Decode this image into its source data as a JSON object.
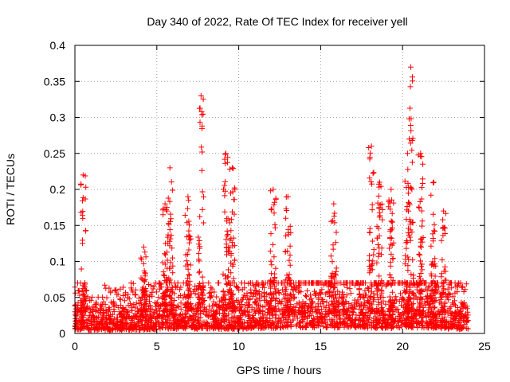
{
  "chart_data": {
    "type": "scatter",
    "title": "Day 340 of 2022, Rate Of TEC Index for receiver yell",
    "xlabel": "GPS time / hours",
    "ylabel": "ROTI / TECUs",
    "xlim": [
      0,
      25
    ],
    "ylim": [
      0,
      0.4
    ],
    "xticks": [
      0,
      5,
      10,
      15,
      20,
      25
    ],
    "xtick_labels": [
      "0",
      "5",
      "10",
      "15",
      "20",
      "25"
    ],
    "yticks": [
      0,
      0.05,
      0.1,
      0.15,
      0.2,
      0.25,
      0.3,
      0.35,
      0.4
    ],
    "ytick_labels": [
      "0",
      "0.05",
      "0.1",
      "0.15",
      "0.2",
      "0.25",
      "0.3",
      "0.35",
      "0.4"
    ],
    "grid": true,
    "marker": "+",
    "color": "#ff0000",
    "baseline_profile": {
      "hours": [
        0,
        2,
        4,
        6,
        8,
        10,
        12,
        13,
        15,
        17,
        19,
        21,
        22,
        23,
        24
      ],
      "typical_roti": [
        0.025,
        0.022,
        0.025,
        0.03,
        0.03,
        0.03,
        0.035,
        0.04,
        0.04,
        0.04,
        0.035,
        0.04,
        0.035,
        0.03,
        0.025
      ]
    },
    "bursts": [
      {
        "time_h": 0.5,
        "peak_roti": 0.22
      },
      {
        "time_h": 4.2,
        "peak_roti": 0.12
      },
      {
        "time_h": 5.5,
        "peak_roti": 0.18
      },
      {
        "time_h": 5.8,
        "peak_roti": 0.23
      },
      {
        "time_h": 6.9,
        "peak_roti": 0.19
      },
      {
        "time_h": 7.7,
        "peak_roti": 0.33
      },
      {
        "time_h": 9.2,
        "peak_roti": 0.25
      },
      {
        "time_h": 9.6,
        "peak_roti": 0.23
      },
      {
        "time_h": 12.1,
        "peak_roti": 0.2
      },
      {
        "time_h": 13.0,
        "peak_roti": 0.19
      },
      {
        "time_h": 15.8,
        "peak_roti": 0.18
      },
      {
        "time_h": 18.1,
        "peak_roti": 0.26
      },
      {
        "time_h": 18.6,
        "peak_roti": 0.21
      },
      {
        "time_h": 19.3,
        "peak_roti": 0.2
      },
      {
        "time_h": 20.3,
        "peak_roti": 0.25
      },
      {
        "time_h": 20.5,
        "peak_roti": 0.37
      },
      {
        "time_h": 21.1,
        "peak_roti": 0.25
      },
      {
        "time_h": 21.9,
        "peak_roti": 0.21
      },
      {
        "time_h": 22.5,
        "peak_roti": 0.17
      }
    ]
  }
}
